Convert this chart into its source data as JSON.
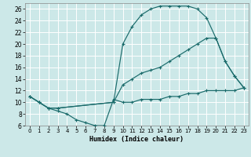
{
  "xlabel": "Humidex (Indice chaleur)",
  "bg_color": "#cce8e8",
  "grid_color": "#ffffff",
  "line_color": "#1a6b6b",
  "xlim": [
    -0.5,
    23.5
  ],
  "ylim": [
    6,
    27
  ],
  "xticks": [
    0,
    1,
    2,
    3,
    4,
    5,
    6,
    7,
    8,
    9,
    10,
    11,
    12,
    13,
    14,
    15,
    16,
    17,
    18,
    19,
    20,
    21,
    22,
    23
  ],
  "yticks": [
    6,
    8,
    10,
    12,
    14,
    16,
    18,
    20,
    22,
    24,
    26
  ],
  "line1_x": [
    0,
    1,
    2,
    3,
    4,
    5,
    6,
    7,
    8,
    9,
    10,
    11,
    12,
    13,
    14,
    15,
    16,
    17,
    18,
    19,
    20,
    21,
    22,
    23
  ],
  "line1_y": [
    11,
    10,
    9,
    8.5,
    8,
    7,
    6.5,
    6,
    6,
    10.5,
    10,
    10,
    10.5,
    10.5,
    10.5,
    11,
    11,
    11.5,
    11.5,
    12,
    12,
    12,
    12,
    12.5
  ],
  "line2_x": [
    0,
    1,
    2,
    3,
    9,
    10,
    11,
    12,
    13,
    14,
    15,
    16,
    17,
    18,
    19,
    20,
    21,
    22,
    23
  ],
  "line2_y": [
    11,
    10,
    9,
    9,
    10,
    13,
    14,
    15,
    15.5,
    16,
    17,
    18,
    19,
    20,
    21,
    21,
    17,
    14.5,
    12.5
  ],
  "line3_x": [
    0,
    1,
    2,
    3,
    9,
    10,
    11,
    12,
    13,
    14,
    15,
    16,
    17,
    18,
    19,
    20,
    21,
    22,
    23
  ],
  "line3_y": [
    11,
    10,
    9,
    9,
    10,
    20,
    23,
    25,
    26,
    26.5,
    26.5,
    26.5,
    26.5,
    26,
    24.5,
    21,
    17,
    14.5,
    12.5
  ]
}
